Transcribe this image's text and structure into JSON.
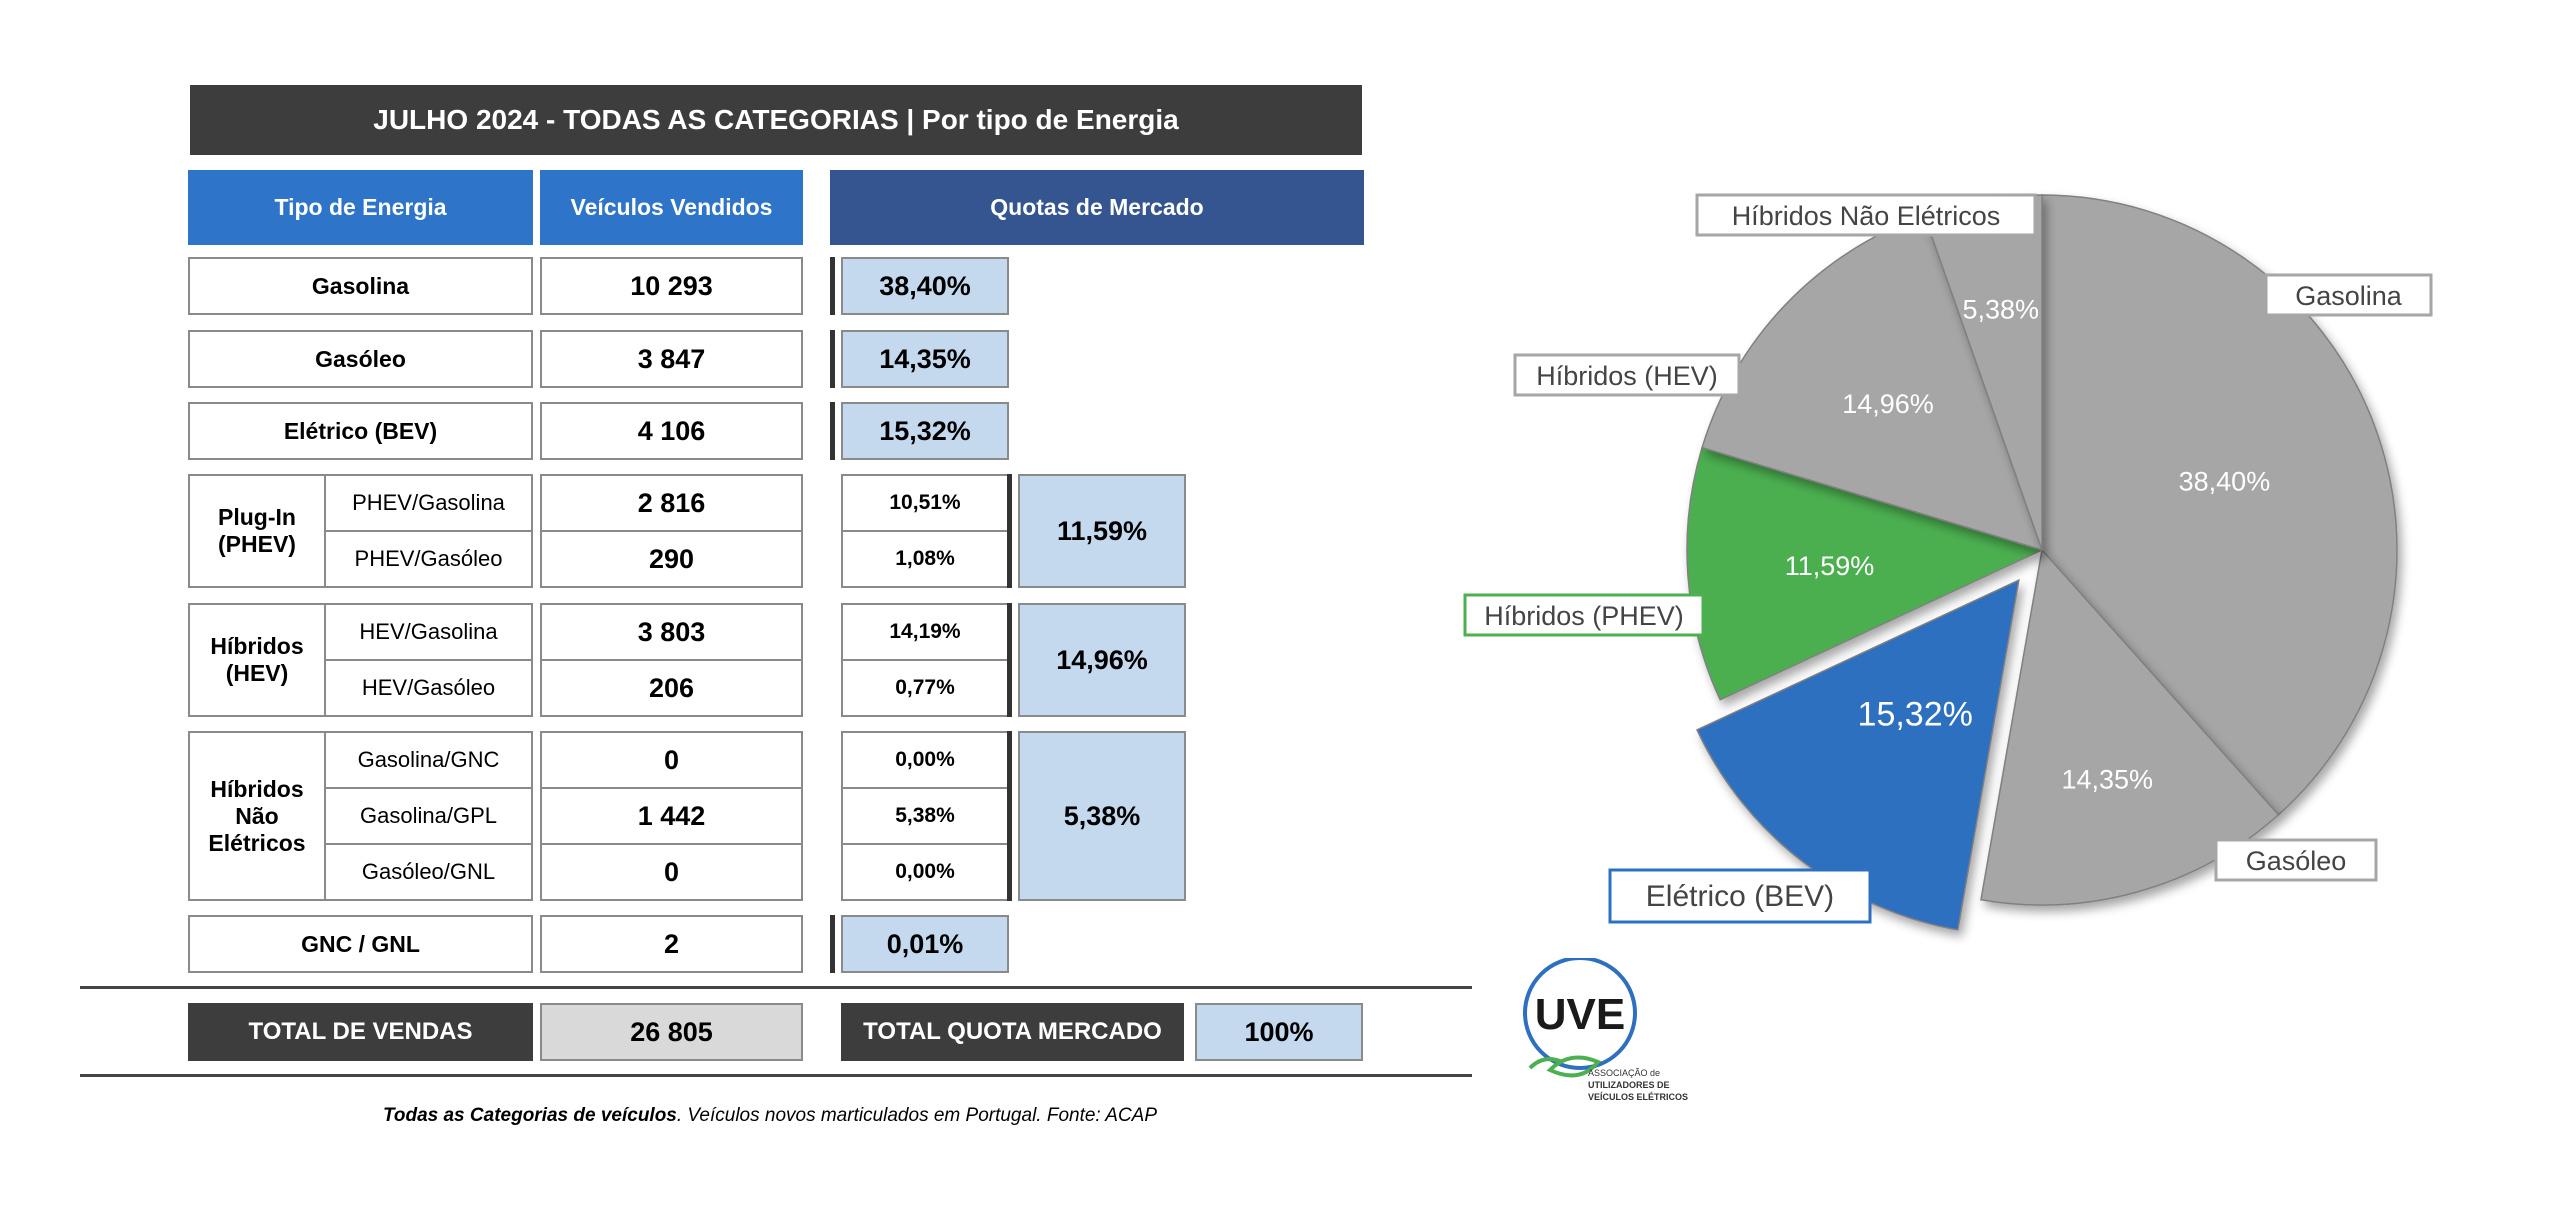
{
  "title": "JULHO 2024  - TODAS AS CATEGORIAS | Por tipo de Energia",
  "headers": {
    "type": "Tipo de Energia",
    "sold": "Veículos Vendidos",
    "share": "Quotas de Mercado"
  },
  "rows": {
    "gasolina": {
      "label": "Gasolina",
      "sold": "10 293",
      "share": "38,40%"
    },
    "gasoleo": {
      "label": "Gasóleo",
      "sold": "3 847",
      "share": "14,35%"
    },
    "bev": {
      "label": "Elétrico (BEV)",
      "sold": "4 106",
      "share": "15,32%"
    },
    "phev": {
      "group": "Plug-In (PHEV)",
      "items": [
        {
          "label": "PHEV/Gasolina",
          "sold": "2 816",
          "share": "10,51%"
        },
        {
          "label": "PHEV/Gasóleo",
          "sold": "290",
          "share": "1,08%"
        }
      ],
      "total_share": "11,59%"
    },
    "hev": {
      "group": "Híbridos (HEV)",
      "items": [
        {
          "label": "HEV/Gasolina",
          "sold": "3 803",
          "share": "14,19%"
        },
        {
          "label": "HEV/Gasóleo",
          "sold": "206",
          "share": "0,77%"
        }
      ],
      "total_share": "14,96%"
    },
    "hne": {
      "group": "Híbridos Não Elétricos",
      "items": [
        {
          "label": "Gasolina/GNC",
          "sold": "0",
          "share": "0,00%"
        },
        {
          "label": "Gasolina/GPL",
          "sold": "1 442",
          "share": "5,38%"
        },
        {
          "label": "Gasóleo/GNL",
          "sold": "0",
          "share": "0,00%"
        }
      ],
      "total_share": "5,38%"
    },
    "gnc": {
      "label": "GNC / GNL",
      "sold": "2",
      "share": "0,01%"
    }
  },
  "totals": {
    "sales_label": "TOTAL DE VENDAS",
    "sales_value": "26 805",
    "share_label": "TOTAL QUOTA MERCADO",
    "share_value": "100%"
  },
  "footnote": {
    "bold": "Todas as Categorias de veículos",
    "rest": ". Veículos novos marticulados em Portugal. Fonte: ACAP"
  },
  "logo": {
    "text": "UVE",
    "line1": "ASSOCIAÇÃO de",
    "line2": "UTILIZADORES DE",
    "line3": "VEÍCULOS ELÉTRICOS"
  },
  "colors": {
    "gray": "#a6a6a6",
    "green": "#4caf50",
    "blue": "#2e6fc0",
    "header_blue": "#2e75c9",
    "header_navy": "#355591",
    "share_fill": "#c5d9ee",
    "dark": "#3d3d3d"
  },
  "chart_data": {
    "type": "pie",
    "start": "12 o'clock, clockwise",
    "slices": [
      {
        "name": "Gasolina",
        "value": 38.4,
        "label": "38,40%",
        "color": "#a6a6a6",
        "exploded": false
      },
      {
        "name": "Gasóleo",
        "value": 14.35,
        "label": "14,35%",
        "color": "#a6a6a6",
        "exploded": false
      },
      {
        "name": "Elétrico (BEV)",
        "value": 15.32,
        "label": "15,32%",
        "color": "#2e6fc0",
        "exploded": true
      },
      {
        "name": "Híbridos (PHEV)",
        "value": 11.59,
        "label": "11,59%",
        "color": "#4caf50",
        "exploded": false
      },
      {
        "name": "Híbridos (HEV)",
        "value": 14.96,
        "label": "14,96%",
        "color": "#a6a6a6",
        "exploded": false
      },
      {
        "name": "Híbridos Não Elétricos",
        "value": 5.38,
        "label": "5,38%",
        "color": "#a6a6a6",
        "exploded": false
      }
    ]
  }
}
